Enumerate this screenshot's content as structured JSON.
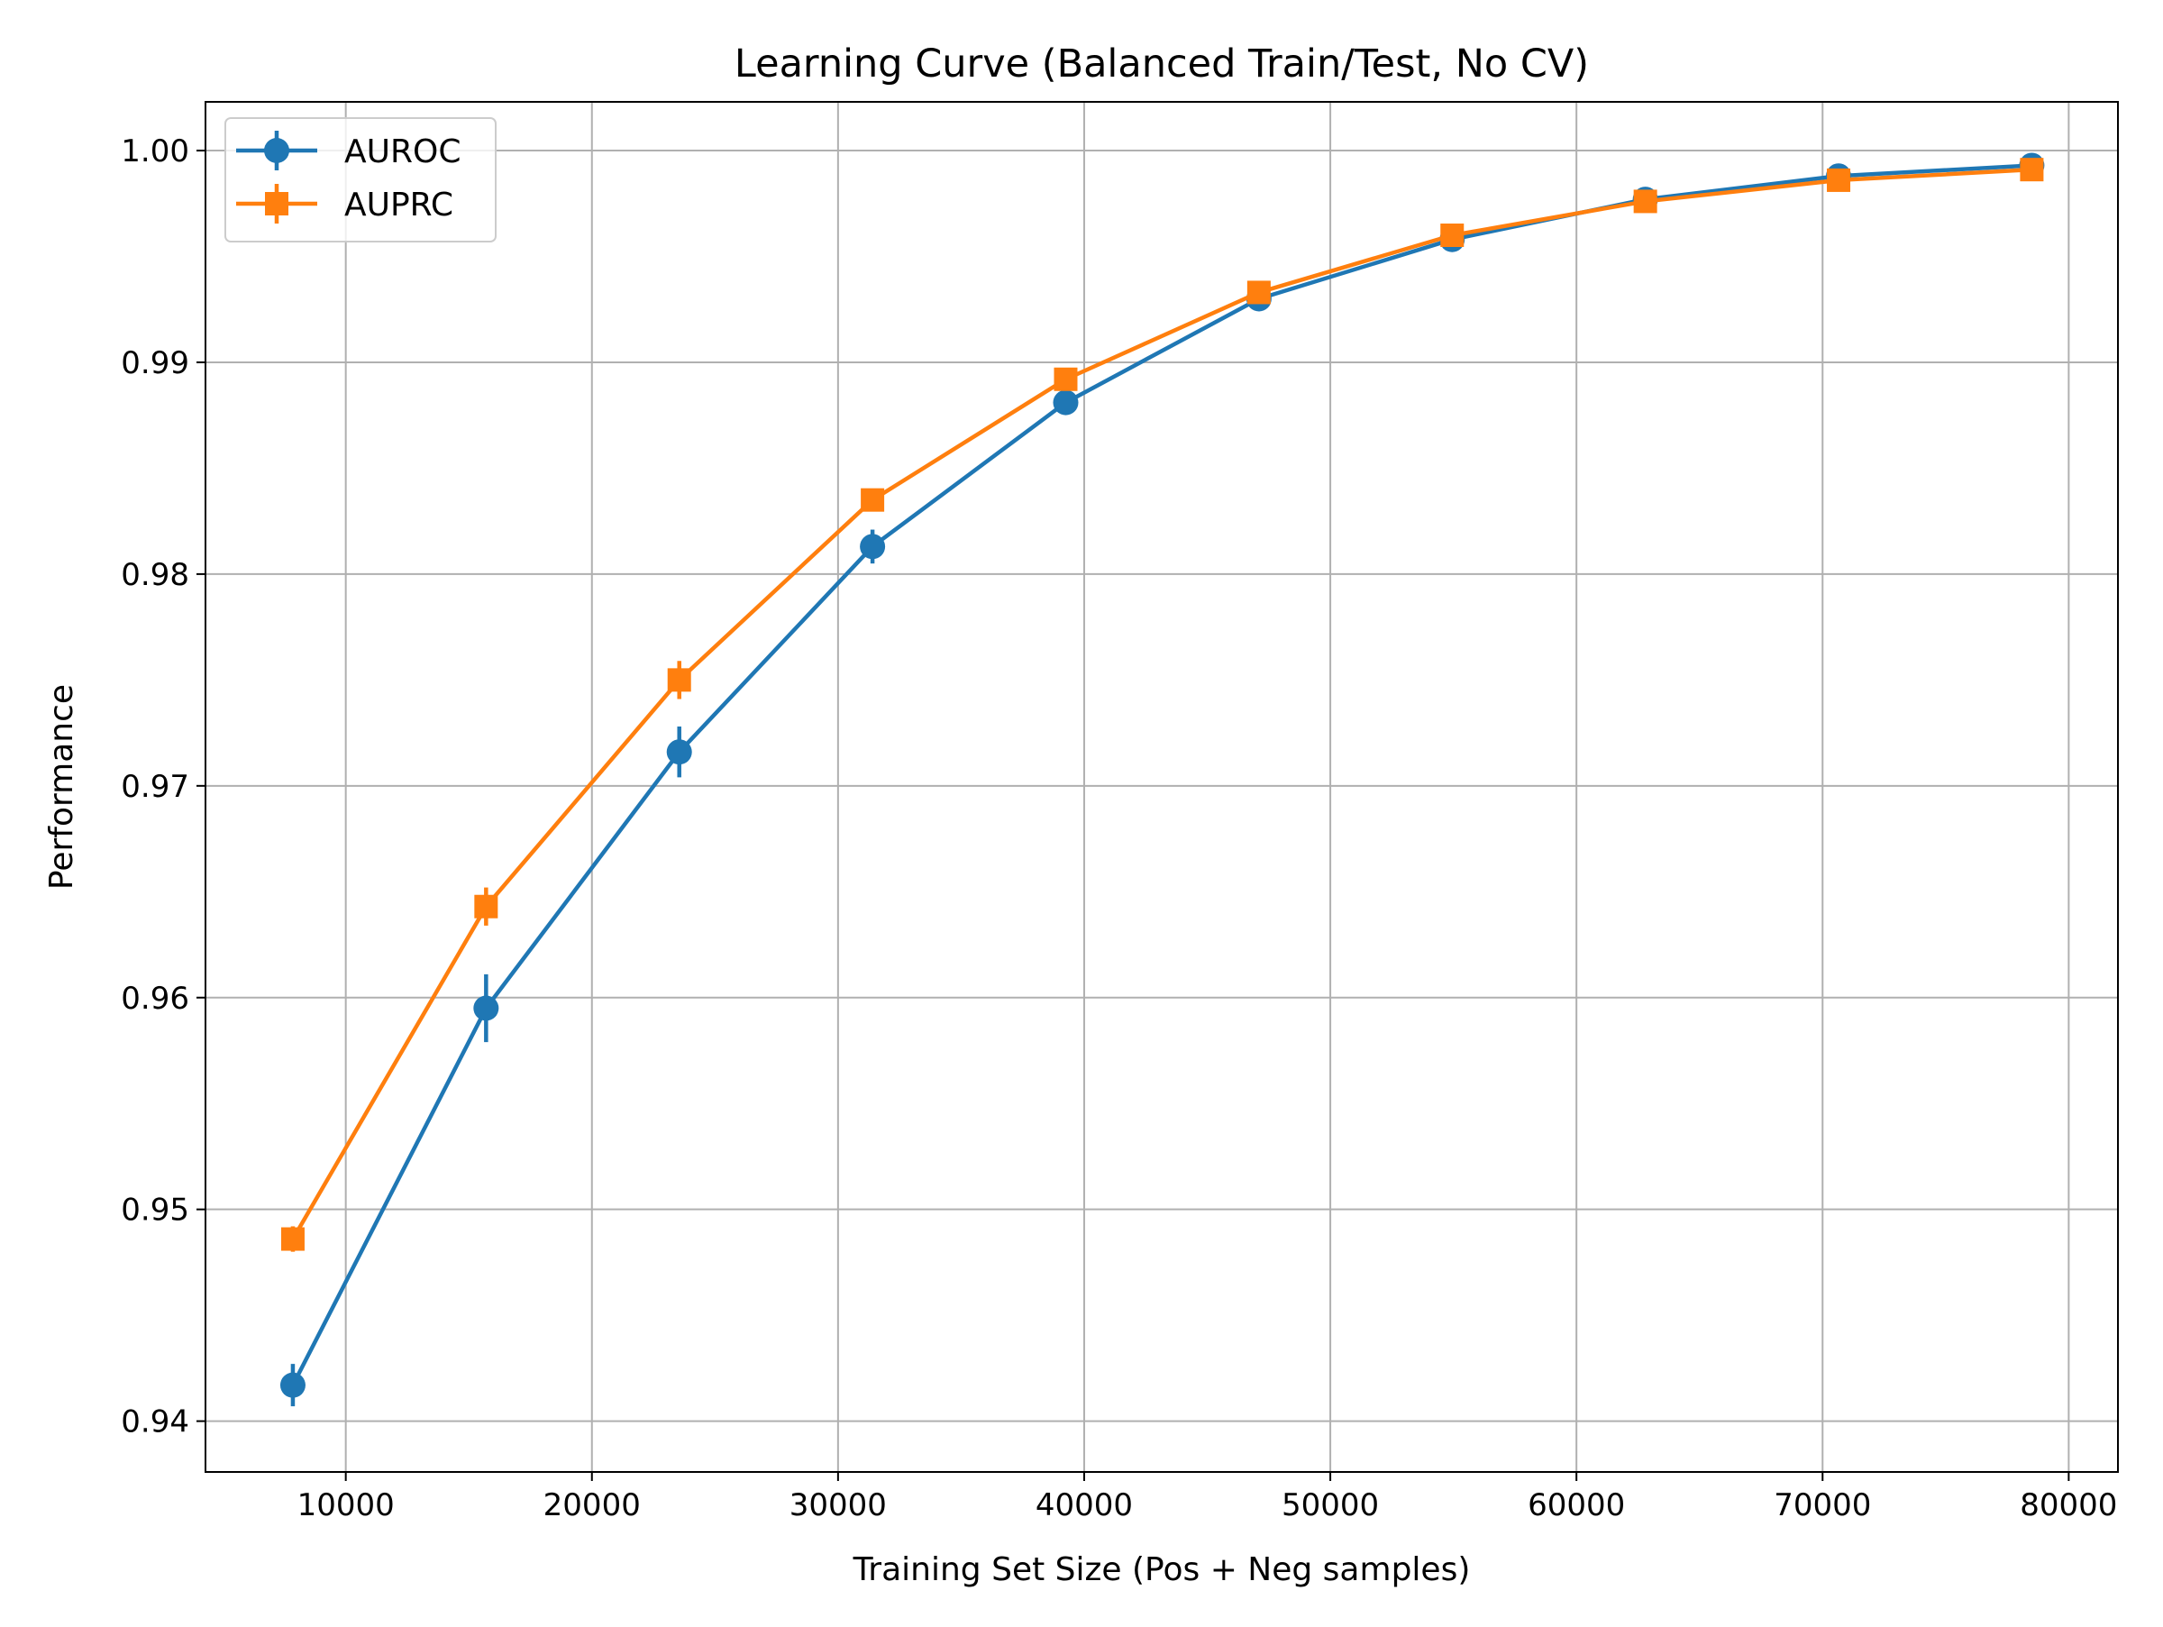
{
  "chart_data": {
    "type": "line",
    "title": "Learning Curve (Balanced Train/Test, No CV)",
    "xlabel": "Training Set Size (Pos + Neg samples)",
    "ylabel": "Performance",
    "xlim": [
      4300,
      82000
    ],
    "ylim": [
      0.9376,
      1.0023
    ],
    "xticks": [
      10000,
      20000,
      30000,
      40000,
      50000,
      60000,
      70000,
      80000
    ],
    "yticks": [
      0.94,
      0.95,
      0.96,
      0.97,
      0.98,
      0.99,
      1.0
    ],
    "xtick_labels": [
      "10000",
      "20000",
      "30000",
      "40000",
      "50000",
      "60000",
      "70000",
      "80000"
    ],
    "ytick_labels": [
      "0.94",
      "0.95",
      "0.96",
      "0.97",
      "0.98",
      "0.99",
      "1.00"
    ],
    "grid": true,
    "legend_position": "top-left",
    "x": [
      7850,
      15700,
      23550,
      31400,
      39250,
      47100,
      54950,
      62800,
      70650,
      78500
    ],
    "series": [
      {
        "name": "AUROC",
        "color": "#1f77b4",
        "marker": "circle",
        "values": [
          0.9417,
          0.9595,
          0.9716,
          0.9813,
          0.9881,
          0.993,
          0.9958,
          0.9977,
          0.9988,
          0.9993
        ],
        "errors": [
          0.001,
          0.0016,
          0.0012,
          0.0008,
          0.0004,
          0.0003,
          0.0002,
          0.0001,
          0.0001,
          0.0001
        ]
      },
      {
        "name": "AUPRC",
        "color": "#ff7f0e",
        "marker": "square",
        "values": [
          0.9486,
          0.9643,
          0.975,
          0.9835,
          0.9892,
          0.9933,
          0.996,
          0.9976,
          0.9986,
          0.9991
        ],
        "errors": [
          0.0006,
          0.0009,
          0.0009,
          0.0004,
          0.0003,
          0.0002,
          0.0001,
          0.0001,
          0.0001,
          0.0001
        ]
      }
    ]
  }
}
